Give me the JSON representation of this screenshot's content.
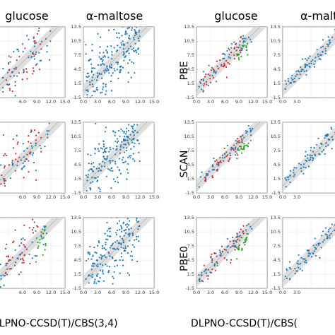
{
  "column_titles": [
    "glucose",
    "α-maltose",
    "glucose",
    "α-malto"
  ],
  "row_labels": [
    "PBE",
    "SCAN",
    "PBE0"
  ],
  "xlabel": "DLPNO-CCSD(T)/CBS(3,4)",
  "xlabel_left_fragment": "DLPNO-CCSD(T)/CBS(3,4)",
  "xlabel_right_fragment": "DLPNO-CCSD(T)/CBS(",
  "colors": {
    "red": "#d62728",
    "blue": "#1f77b4",
    "green": "#2ca02c",
    "band": "#d9d9d9"
  },
  "chart_data": [
    {
      "type": "scatter",
      "panel": "left",
      "column": 0,
      "title": "glucose",
      "row": 0,
      "xlim": [
        0,
        15
      ],
      "ylim": [
        -1.5,
        13.5
      ],
      "xticks": [
        6.0,
        9.0,
        12.0,
        15.0
      ],
      "yticks": [],
      "series": [
        {
          "color": "red",
          "n": 40
        },
        {
          "color": "blue",
          "n": 60
        }
      ]
    },
    {
      "type": "scatter",
      "panel": "left",
      "column": 1,
      "title": "α-maltose",
      "row": 0,
      "xlim": [
        0,
        15
      ],
      "ylim": [
        -1.5,
        13.5
      ],
      "xticks": [
        0.0,
        3.0,
        6.0,
        9.0,
        12.0,
        15.0
      ],
      "yticks": [
        -1.5,
        1.5,
        4.5,
        7.5,
        10.5,
        13.5
      ],
      "series": [
        {
          "color": "blue",
          "n": 220
        }
      ]
    },
    {
      "type": "scatter",
      "panel": "right",
      "column": 2,
      "title": "glucose",
      "row": 0,
      "row_label": "PBE",
      "xlim": [
        0,
        15
      ],
      "ylim": [
        -1.5,
        13.5
      ],
      "xticks": [
        0.0,
        3.0,
        6.0,
        9.0,
        12.0,
        15.0
      ],
      "yticks": [
        -1.5,
        1.5,
        4.5,
        7.5,
        10.5,
        13.5
      ],
      "series": [
        {
          "color": "red",
          "n": 45
        },
        {
          "color": "blue",
          "n": 50
        },
        {
          "color": "green",
          "n": 20
        }
      ]
    },
    {
      "type": "scatter",
      "panel": "right",
      "column": 3,
      "title": "α-malto",
      "row": 0,
      "xlim": [
        0,
        15
      ],
      "ylim": [
        -1.5,
        13.5
      ],
      "xticks": [
        0.0,
        3.0
      ],
      "yticks": [
        -1.5,
        1.5,
        4.5,
        7.5,
        10.5,
        13.5
      ],
      "series": [
        {
          "color": "blue",
          "n": 80
        }
      ]
    },
    {
      "type": "scatter",
      "panel": "left",
      "column": 0,
      "row": 1,
      "xlim": [
        0,
        15
      ],
      "ylim": [
        -1.5,
        13.5
      ],
      "xticks": [
        6.0,
        9.0,
        12.0,
        15.0
      ],
      "yticks": [],
      "series": [
        {
          "color": "red",
          "n": 45
        },
        {
          "color": "blue",
          "n": 50
        }
      ]
    },
    {
      "type": "scatter",
      "panel": "left",
      "column": 1,
      "row": 1,
      "xlim": [
        0,
        15
      ],
      "ylim": [
        -1.5,
        13.5
      ],
      "xticks": [
        0.0,
        3.0,
        6.0,
        9.0,
        12.0,
        15.0
      ],
      "yticks": [
        -1.5,
        1.5,
        4.5,
        7.5,
        10.5,
        13.5
      ],
      "series": [
        {
          "color": "blue",
          "n": 220
        }
      ]
    },
    {
      "type": "scatter",
      "panel": "right",
      "column": 2,
      "row": 1,
      "row_label": "SCAN",
      "xlim": [
        0,
        15
      ],
      "ylim": [
        -1.5,
        13.5
      ],
      "xticks": [
        0.0,
        3.0,
        6.0,
        9.0,
        12.0,
        15.0
      ],
      "yticks": [
        -1.5,
        1.5,
        4.5,
        7.5,
        10.5,
        13.5
      ],
      "series": [
        {
          "color": "red",
          "n": 45
        },
        {
          "color": "blue",
          "n": 50
        },
        {
          "color": "green",
          "n": 20
        }
      ]
    },
    {
      "type": "scatter",
      "panel": "right",
      "column": 3,
      "row": 1,
      "xlim": [
        0,
        15
      ],
      "ylim": [
        -1.5,
        13.5
      ],
      "xticks": [
        0.0,
        3.0
      ],
      "yticks": [
        -1.5,
        1.5,
        4.5,
        7.5,
        10.5,
        13.5
      ],
      "series": [
        {
          "color": "blue",
          "n": 80
        }
      ]
    },
    {
      "type": "scatter",
      "panel": "left",
      "column": 0,
      "row": 2,
      "xlim": [
        0,
        15
      ],
      "ylim": [
        -1.5,
        13.5
      ],
      "xticks": [
        6.0,
        9.0,
        12.0,
        15.0
      ],
      "yticks": [],
      "series": [
        {
          "color": "red",
          "n": 40
        },
        {
          "color": "blue",
          "n": 45
        },
        {
          "color": "green",
          "n": 20
        }
      ]
    },
    {
      "type": "scatter",
      "panel": "left",
      "column": 1,
      "row": 2,
      "xlim": [
        0,
        15
      ],
      "ylim": [
        -1.5,
        13.5
      ],
      "xticks": [
        0.0,
        3.0,
        6.0,
        9.0,
        12.0,
        15.0
      ],
      "yticks": [
        -1.5,
        1.5,
        4.5,
        7.5,
        10.5,
        13.5
      ],
      "series": [
        {
          "color": "blue",
          "n": 220
        }
      ]
    },
    {
      "type": "scatter",
      "panel": "right",
      "column": 2,
      "row": 2,
      "row_label": "PBE0",
      "xlim": [
        0,
        15
      ],
      "ylim": [
        -1.5,
        13.5
      ],
      "xticks": [
        0.0,
        3.0,
        6.0,
        9.0,
        12.0,
        15.0
      ],
      "yticks": [
        -1.5,
        1.5,
        4.5,
        7.5,
        10.5,
        13.5
      ],
      "series": [
        {
          "color": "red",
          "n": 45
        },
        {
          "color": "blue",
          "n": 50
        },
        {
          "color": "green",
          "n": 25
        }
      ]
    },
    {
      "type": "scatter",
      "panel": "right",
      "column": 3,
      "row": 2,
      "xlim": [
        0,
        15
      ],
      "ylim": [
        -1.5,
        13.5
      ],
      "xticks": [
        0.0,
        3.0
      ],
      "yticks": [
        -1.5,
        1.5,
        4.5,
        7.5,
        10.5,
        13.5
      ],
      "series": [
        {
          "color": "blue",
          "n": 80
        }
      ]
    }
  ]
}
